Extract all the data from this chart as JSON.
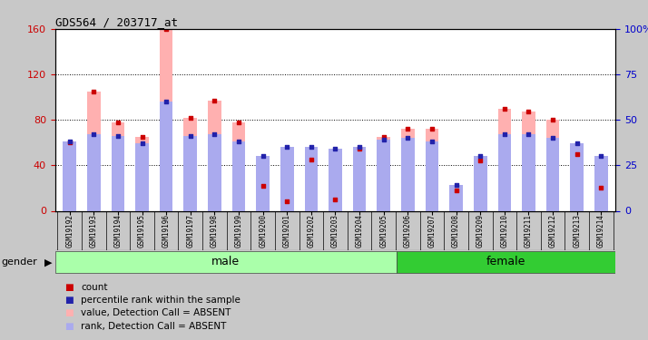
{
  "title": "GDS564 / 203717_at",
  "samples": [
    "GSM19192",
    "GSM19193",
    "GSM19194",
    "GSM19195",
    "GSM19196",
    "GSM19197",
    "GSM19198",
    "GSM19199",
    "GSM19200",
    "GSM19201",
    "GSM19202",
    "GSM19203",
    "GSM19204",
    "GSM19205",
    "GSM19206",
    "GSM19207",
    "GSM19208",
    "GSM19209",
    "GSM19210",
    "GSM19211",
    "GSM19212",
    "GSM19213",
    "GSM19214"
  ],
  "count_values": [
    60,
    105,
    78,
    65,
    160,
    82,
    97,
    78,
    22,
    8,
    45,
    10,
    55,
    65,
    72,
    72,
    18,
    44,
    90,
    87,
    80,
    50,
    20
  ],
  "rank_values": [
    38,
    42,
    41,
    37,
    60,
    41,
    42,
    38,
    30,
    35,
    35,
    34,
    35,
    39,
    40,
    38,
    14,
    30,
    42,
    42,
    40,
    37,
    30
  ],
  "gender": [
    "male",
    "male",
    "male",
    "male",
    "male",
    "male",
    "male",
    "male",
    "male",
    "male",
    "male",
    "male",
    "male",
    "male",
    "female",
    "female",
    "female",
    "female",
    "female",
    "female",
    "female",
    "female",
    "female"
  ],
  "male_color_light": "#AAFFAA",
  "female_color": "#33CC33",
  "bar_color_count": "#FFB0B0",
  "bar_color_rank": "#AAAAEE",
  "dot_color_count": "#CC0000",
  "dot_color_rank": "#2222AA",
  "ylim_left": [
    0,
    160
  ],
  "ylim_right": [
    0,
    100
  ],
  "yticks_left": [
    0,
    40,
    80,
    120,
    160
  ],
  "yticks_right": [
    0,
    25,
    50,
    75,
    100
  ],
  "ytick_labels_right": [
    "0",
    "25",
    "50",
    "75",
    "100%"
  ],
  "legend_items": [
    {
      "label": "count",
      "color": "#CC0000"
    },
    {
      "label": "percentile rank within the sample",
      "color": "#2222AA"
    },
    {
      "label": "value, Detection Call = ABSENT",
      "color": "#FFB0B0"
    },
    {
      "label": "rank, Detection Call = ABSENT",
      "color": "#AAAAEE"
    }
  ]
}
